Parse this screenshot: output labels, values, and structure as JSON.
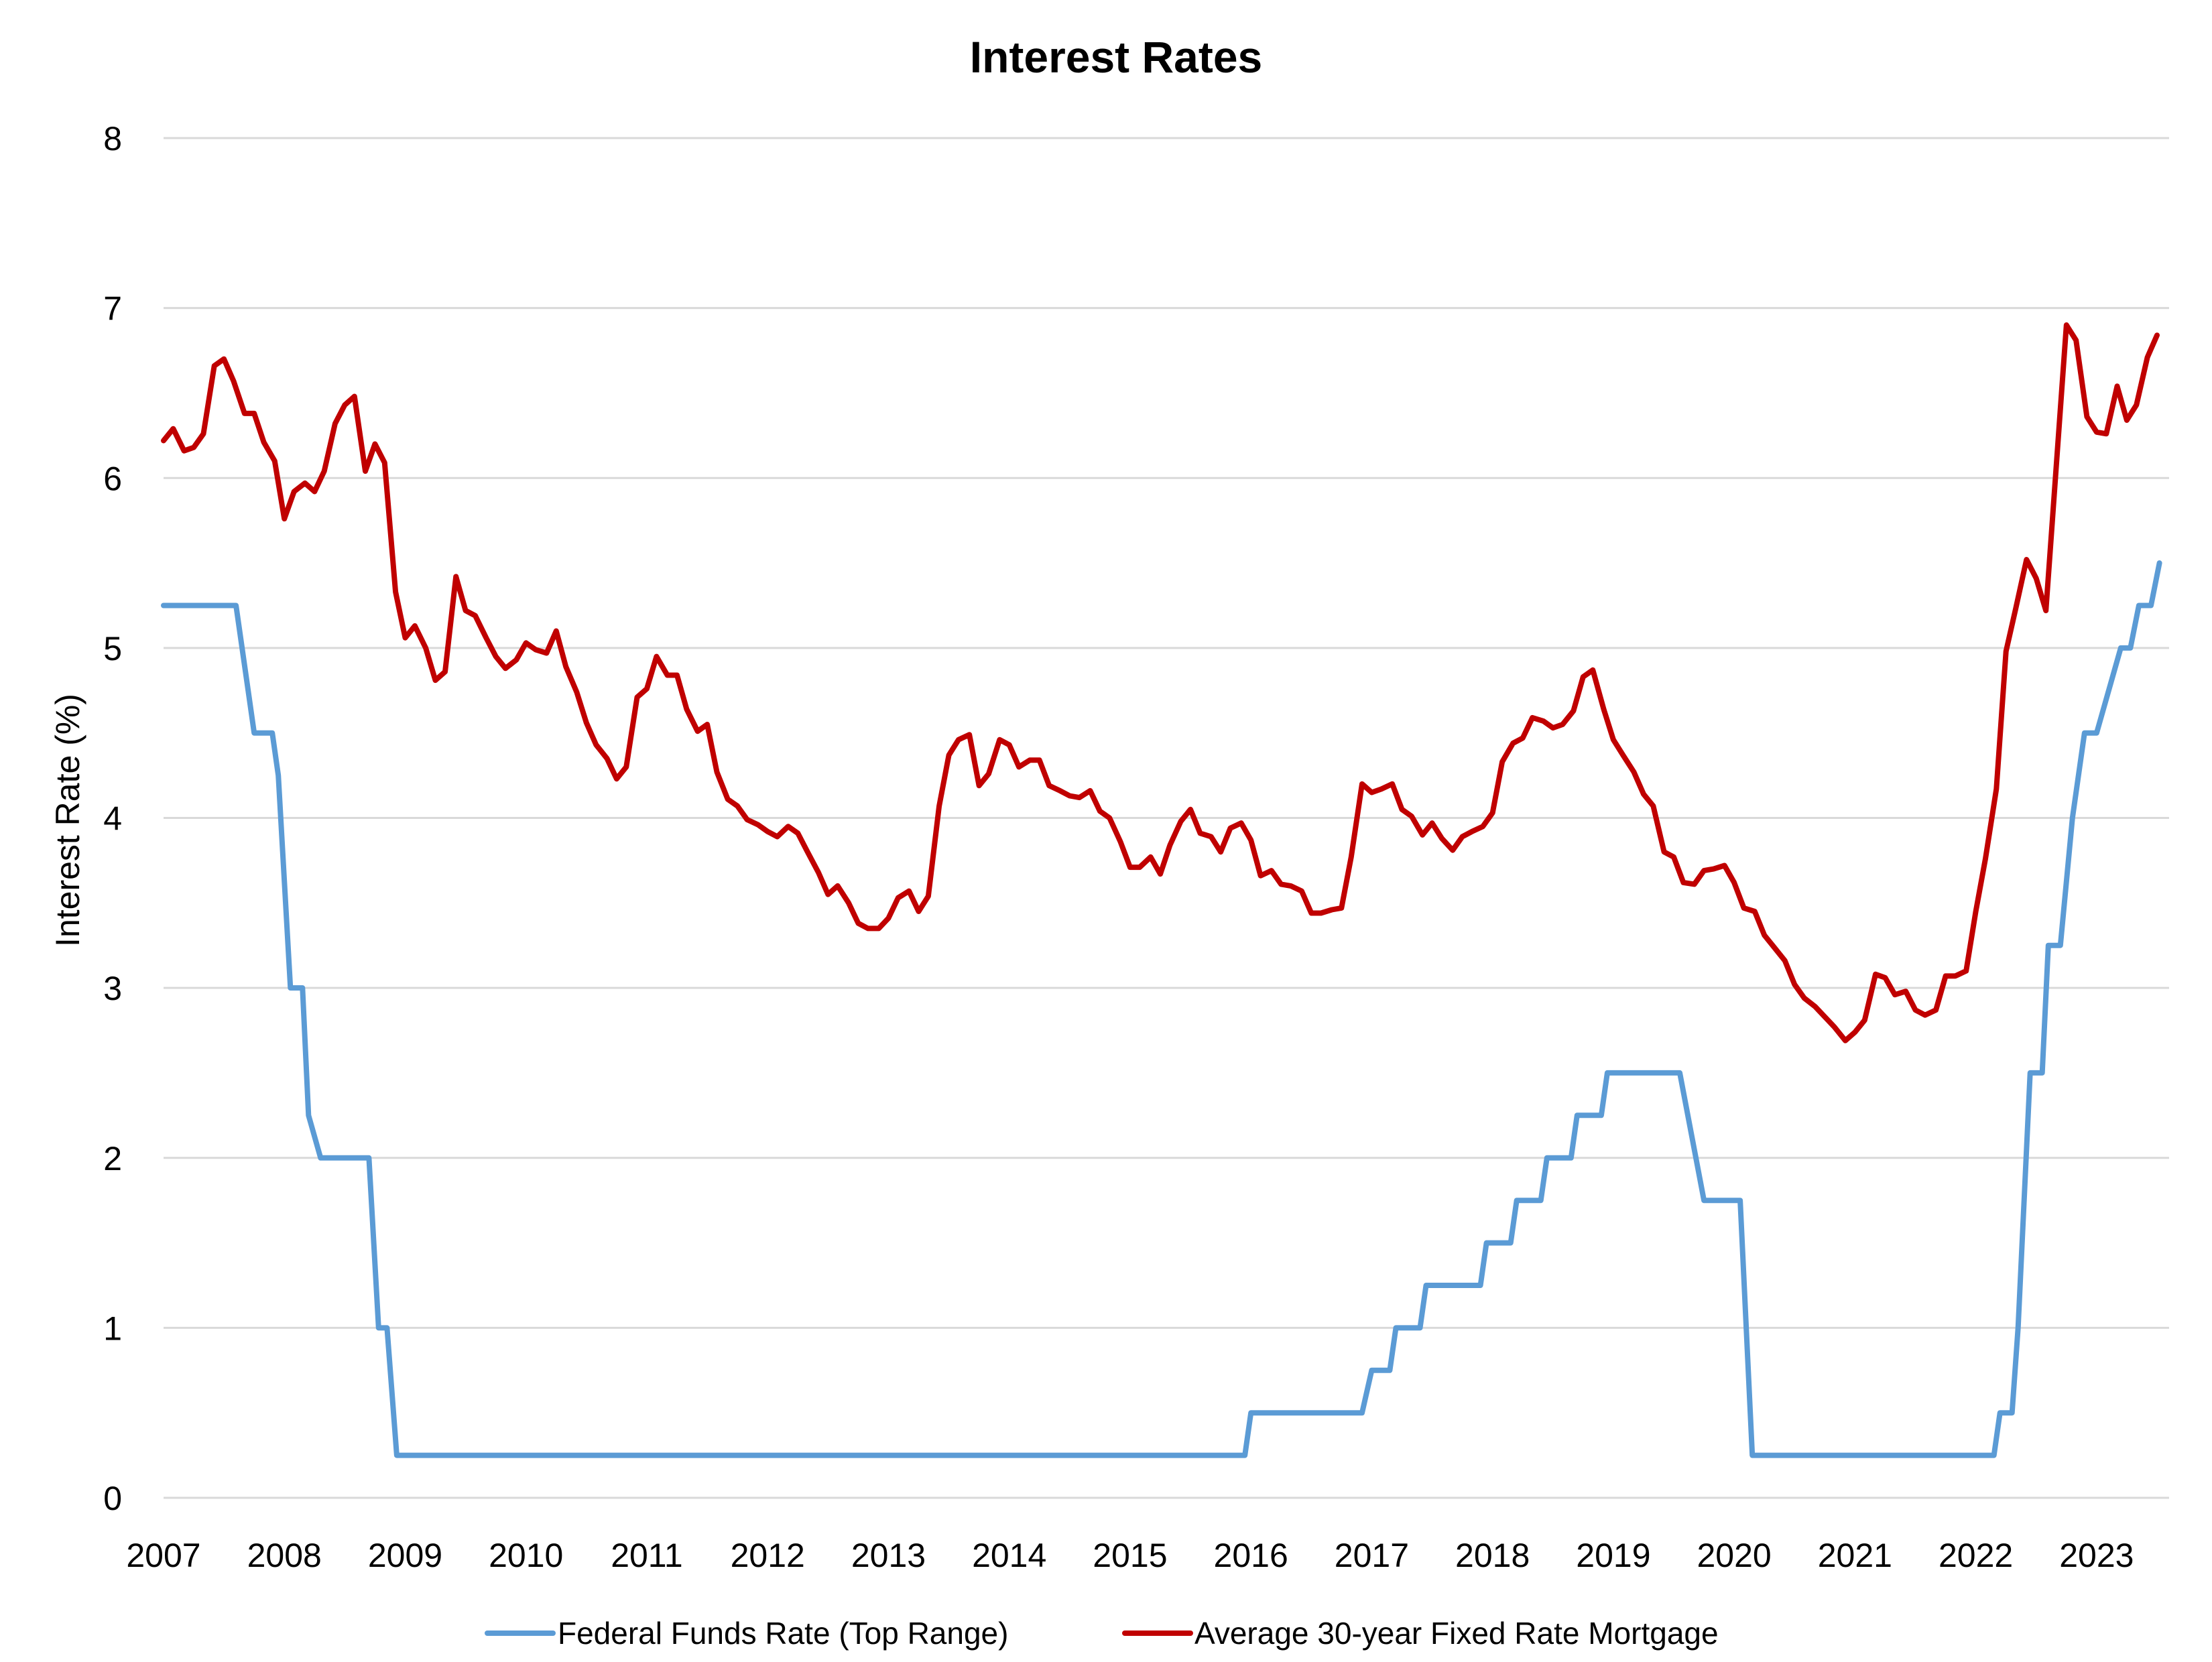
{
  "chart_data": {
    "type": "line",
    "title": "Interest Rates",
    "xlabel": "",
    "ylabel": "Interest Rate (%)",
    "xlim": [
      2007,
      2023.6
    ],
    "ylim": [
      0,
      8
    ],
    "yticks": [
      "0",
      "1",
      "2",
      "3",
      "4",
      "5",
      "6",
      "7",
      "8"
    ],
    "xticks": [
      "2007",
      "2008",
      "2009",
      "2010",
      "2011",
      "2012",
      "2013",
      "2014",
      "2015",
      "2016",
      "2017",
      "2018",
      "2019",
      "2020",
      "2021",
      "2022",
      "2023"
    ],
    "grid": true,
    "legend_position": "bottom",
    "series": [
      {
        "name": "Federal Funds Rate (Top Range)",
        "color": "#5b9bd5",
        "step": true,
        "points": [
          [
            2007.0,
            5.25
          ],
          [
            2007.6,
            5.25
          ],
          [
            2007.7,
            4.75
          ],
          [
            2007.75,
            4.5
          ],
          [
            2007.9,
            4.5
          ],
          [
            2007.95,
            4.25
          ],
          [
            2008.05,
            3.0
          ],
          [
            2008.15,
            3.0
          ],
          [
            2008.2,
            2.25
          ],
          [
            2008.3,
            2.0
          ],
          [
            2008.7,
            2.0
          ],
          [
            2008.78,
            1.0
          ],
          [
            2008.85,
            1.0
          ],
          [
            2008.93,
            0.25
          ],
          [
            2015.95,
            0.25
          ],
          [
            2016.0,
            0.5
          ],
          [
            2016.92,
            0.5
          ],
          [
            2017.0,
            0.75
          ],
          [
            2017.15,
            0.75
          ],
          [
            2017.2,
            1.0
          ],
          [
            2017.4,
            1.0
          ],
          [
            2017.45,
            1.25
          ],
          [
            2017.9,
            1.25
          ],
          [
            2017.95,
            1.5
          ],
          [
            2018.15,
            1.5
          ],
          [
            2018.2,
            1.75
          ],
          [
            2018.4,
            1.75
          ],
          [
            2018.45,
            2.0
          ],
          [
            2018.65,
            2.0
          ],
          [
            2018.7,
            2.25
          ],
          [
            2018.9,
            2.25
          ],
          [
            2018.95,
            2.5
          ],
          [
            2019.55,
            2.5
          ],
          [
            2019.75,
            1.75
          ],
          [
            2020.05,
            1.75
          ],
          [
            2020.15,
            0.25
          ],
          [
            2022.15,
            0.25
          ],
          [
            2022.2,
            0.5
          ],
          [
            2022.3,
            0.5
          ],
          [
            2022.35,
            1.0
          ],
          [
            2022.45,
            2.5
          ],
          [
            2022.55,
            2.5
          ],
          [
            2022.6,
            3.25
          ],
          [
            2022.7,
            3.25
          ],
          [
            2022.8,
            4.0
          ],
          [
            2022.9,
            4.5
          ],
          [
            2023.0,
            4.5
          ],
          [
            2023.2,
            5.0
          ],
          [
            2023.28,
            5.0
          ],
          [
            2023.35,
            5.25
          ],
          [
            2023.45,
            5.25
          ],
          [
            2023.52,
            5.5
          ]
        ]
      },
      {
        "name": "Average 30-year Fixed Rate Mortgage",
        "color": "#c00000",
        "step": false,
        "points": [
          [
            2007.0,
            6.22
          ],
          [
            2007.08,
            6.29
          ],
          [
            2007.17,
            6.16
          ],
          [
            2007.25,
            6.18
          ],
          [
            2007.33,
            6.26
          ],
          [
            2007.42,
            6.66
          ],
          [
            2007.5,
            6.7
          ],
          [
            2007.58,
            6.57
          ],
          [
            2007.67,
            6.38
          ],
          [
            2007.75,
            6.38
          ],
          [
            2007.83,
            6.21
          ],
          [
            2007.92,
            6.1
          ],
          [
            2008.0,
            5.76
          ],
          [
            2008.08,
            5.92
          ],
          [
            2008.17,
            5.97
          ],
          [
            2008.25,
            5.92
          ],
          [
            2008.33,
            6.04
          ],
          [
            2008.42,
            6.32
          ],
          [
            2008.5,
            6.43
          ],
          [
            2008.58,
            6.48
          ],
          [
            2008.67,
            6.04
          ],
          [
            2008.75,
            6.2
          ],
          [
            2008.83,
            6.09
          ],
          [
            2008.92,
            5.33
          ],
          [
            2009.0,
            5.06
          ],
          [
            2009.08,
            5.13
          ],
          [
            2009.17,
            5.0
          ],
          [
            2009.25,
            4.81
          ],
          [
            2009.33,
            4.86
          ],
          [
            2009.42,
            5.42
          ],
          [
            2009.5,
            5.22
          ],
          [
            2009.58,
            5.19
          ],
          [
            2009.67,
            5.06
          ],
          [
            2009.75,
            4.95
          ],
          [
            2009.83,
            4.88
          ],
          [
            2009.92,
            4.93
          ],
          [
            2010.0,
            5.03
          ],
          [
            2010.08,
            4.99
          ],
          [
            2010.17,
            4.97
          ],
          [
            2010.25,
            5.1
          ],
          [
            2010.33,
            4.89
          ],
          [
            2010.42,
            4.74
          ],
          [
            2010.5,
            4.56
          ],
          [
            2010.58,
            4.43
          ],
          [
            2010.67,
            4.35
          ],
          [
            2010.75,
            4.23
          ],
          [
            2010.83,
            4.3
          ],
          [
            2010.92,
            4.71
          ],
          [
            2011.0,
            4.76
          ],
          [
            2011.08,
            4.95
          ],
          [
            2011.17,
            4.84
          ],
          [
            2011.25,
            4.84
          ],
          [
            2011.33,
            4.64
          ],
          [
            2011.42,
            4.51
          ],
          [
            2011.5,
            4.55
          ],
          [
            2011.58,
            4.27
          ],
          [
            2011.67,
            4.11
          ],
          [
            2011.75,
            4.07
          ],
          [
            2011.83,
            3.99
          ],
          [
            2011.92,
            3.96
          ],
          [
            2012.0,
            3.92
          ],
          [
            2012.08,
            3.89
          ],
          [
            2012.17,
            3.95
          ],
          [
            2012.25,
            3.91
          ],
          [
            2012.33,
            3.8
          ],
          [
            2012.42,
            3.68
          ],
          [
            2012.5,
            3.55
          ],
          [
            2012.58,
            3.6
          ],
          [
            2012.67,
            3.5
          ],
          [
            2012.75,
            3.38
          ],
          [
            2012.83,
            3.35
          ],
          [
            2012.92,
            3.35
          ],
          [
            2013.0,
            3.41
          ],
          [
            2013.08,
            3.53
          ],
          [
            2013.17,
            3.57
          ],
          [
            2013.25,
            3.45
          ],
          [
            2013.33,
            3.54
          ],
          [
            2013.42,
            4.07
          ],
          [
            2013.5,
            4.37
          ],
          [
            2013.58,
            4.46
          ],
          [
            2013.67,
            4.49
          ],
          [
            2013.75,
            4.19
          ],
          [
            2013.83,
            4.26
          ],
          [
            2013.92,
            4.46
          ],
          [
            2014.0,
            4.43
          ],
          [
            2014.08,
            4.3
          ],
          [
            2014.17,
            4.34
          ],
          [
            2014.25,
            4.34
          ],
          [
            2014.33,
            4.19
          ],
          [
            2014.42,
            4.16
          ],
          [
            2014.5,
            4.13
          ],
          [
            2014.58,
            4.12
          ],
          [
            2014.67,
            4.16
          ],
          [
            2014.75,
            4.04
          ],
          [
            2014.83,
            4.0
          ],
          [
            2014.92,
            3.86
          ],
          [
            2015.0,
            3.71
          ],
          [
            2015.08,
            3.71
          ],
          [
            2015.17,
            3.77
          ],
          [
            2015.25,
            3.67
          ],
          [
            2015.33,
            3.84
          ],
          [
            2015.42,
            3.98
          ],
          [
            2015.5,
            4.05
          ],
          [
            2015.58,
            3.91
          ],
          [
            2015.67,
            3.89
          ],
          [
            2015.75,
            3.8
          ],
          [
            2015.83,
            3.94
          ],
          [
            2015.92,
            3.97
          ],
          [
            2016.0,
            3.87
          ],
          [
            2016.08,
            3.66
          ],
          [
            2016.17,
            3.69
          ],
          [
            2016.25,
            3.61
          ],
          [
            2016.33,
            3.6
          ],
          [
            2016.42,
            3.57
          ],
          [
            2016.5,
            3.44
          ],
          [
            2016.58,
            3.44
          ],
          [
            2016.67,
            3.46
          ],
          [
            2016.75,
            3.47
          ],
          [
            2016.83,
            3.77
          ],
          [
            2016.92,
            4.2
          ],
          [
            2017.0,
            4.15
          ],
          [
            2017.08,
            4.17
          ],
          [
            2017.17,
            4.2
          ],
          [
            2017.25,
            4.05
          ],
          [
            2017.33,
            4.01
          ],
          [
            2017.42,
            3.9
          ],
          [
            2017.5,
            3.97
          ],
          [
            2017.58,
            3.88
          ],
          [
            2017.67,
            3.81
          ],
          [
            2017.75,
            3.89
          ],
          [
            2017.83,
            3.92
          ],
          [
            2017.92,
            3.95
          ],
          [
            2018.0,
            4.03
          ],
          [
            2018.08,
            4.33
          ],
          [
            2018.17,
            4.44
          ],
          [
            2018.25,
            4.47
          ],
          [
            2018.33,
            4.59
          ],
          [
            2018.42,
            4.57
          ],
          [
            2018.5,
            4.53
          ],
          [
            2018.58,
            4.55
          ],
          [
            2018.67,
            4.63
          ],
          [
            2018.75,
            4.83
          ],
          [
            2018.83,
            4.87
          ],
          [
            2018.92,
            4.64
          ],
          [
            2019.0,
            4.46
          ],
          [
            2019.08,
            4.37
          ],
          [
            2019.17,
            4.27
          ],
          [
            2019.25,
            4.14
          ],
          [
            2019.33,
            4.07
          ],
          [
            2019.42,
            3.8
          ],
          [
            2019.5,
            3.77
          ],
          [
            2019.58,
            3.62
          ],
          [
            2019.67,
            3.61
          ],
          [
            2019.75,
            3.69
          ],
          [
            2019.83,
            3.7
          ],
          [
            2019.92,
            3.72
          ],
          [
            2020.0,
            3.62
          ],
          [
            2020.08,
            3.47
          ],
          [
            2020.17,
            3.45
          ],
          [
            2020.25,
            3.31
          ],
          [
            2020.33,
            3.24
          ],
          [
            2020.42,
            3.16
          ],
          [
            2020.5,
            3.02
          ],
          [
            2020.58,
            2.94
          ],
          [
            2020.67,
            2.89
          ],
          [
            2020.75,
            2.83
          ],
          [
            2020.83,
            2.77
          ],
          [
            2020.92,
            2.69
          ],
          [
            2021.0,
            2.74
          ],
          [
            2021.08,
            2.81
          ],
          [
            2021.17,
            3.08
          ],
          [
            2021.25,
            3.06
          ],
          [
            2021.33,
            2.96
          ],
          [
            2021.42,
            2.98
          ],
          [
            2021.5,
            2.87
          ],
          [
            2021.58,
            2.84
          ],
          [
            2021.67,
            2.87
          ],
          [
            2021.75,
            3.07
          ],
          [
            2021.83,
            3.07
          ],
          [
            2021.92,
            3.1
          ],
          [
            2022.0,
            3.45
          ],
          [
            2022.08,
            3.76
          ],
          [
            2022.17,
            4.17
          ],
          [
            2022.25,
            4.98
          ],
          [
            2022.33,
            5.23
          ],
          [
            2022.42,
            5.52
          ],
          [
            2022.5,
            5.41
          ],
          [
            2022.58,
            5.22
          ],
          [
            2022.67,
            6.11
          ],
          [
            2022.75,
            6.9
          ],
          [
            2022.83,
            6.81
          ],
          [
            2022.92,
            6.36
          ],
          [
            2023.0,
            6.27
          ],
          [
            2023.08,
            6.26
          ],
          [
            2023.17,
            6.54
          ],
          [
            2023.25,
            6.34
          ],
          [
            2023.33,
            6.43
          ],
          [
            2023.42,
            6.71
          ],
          [
            2023.5,
            6.84
          ]
        ]
      }
    ]
  }
}
